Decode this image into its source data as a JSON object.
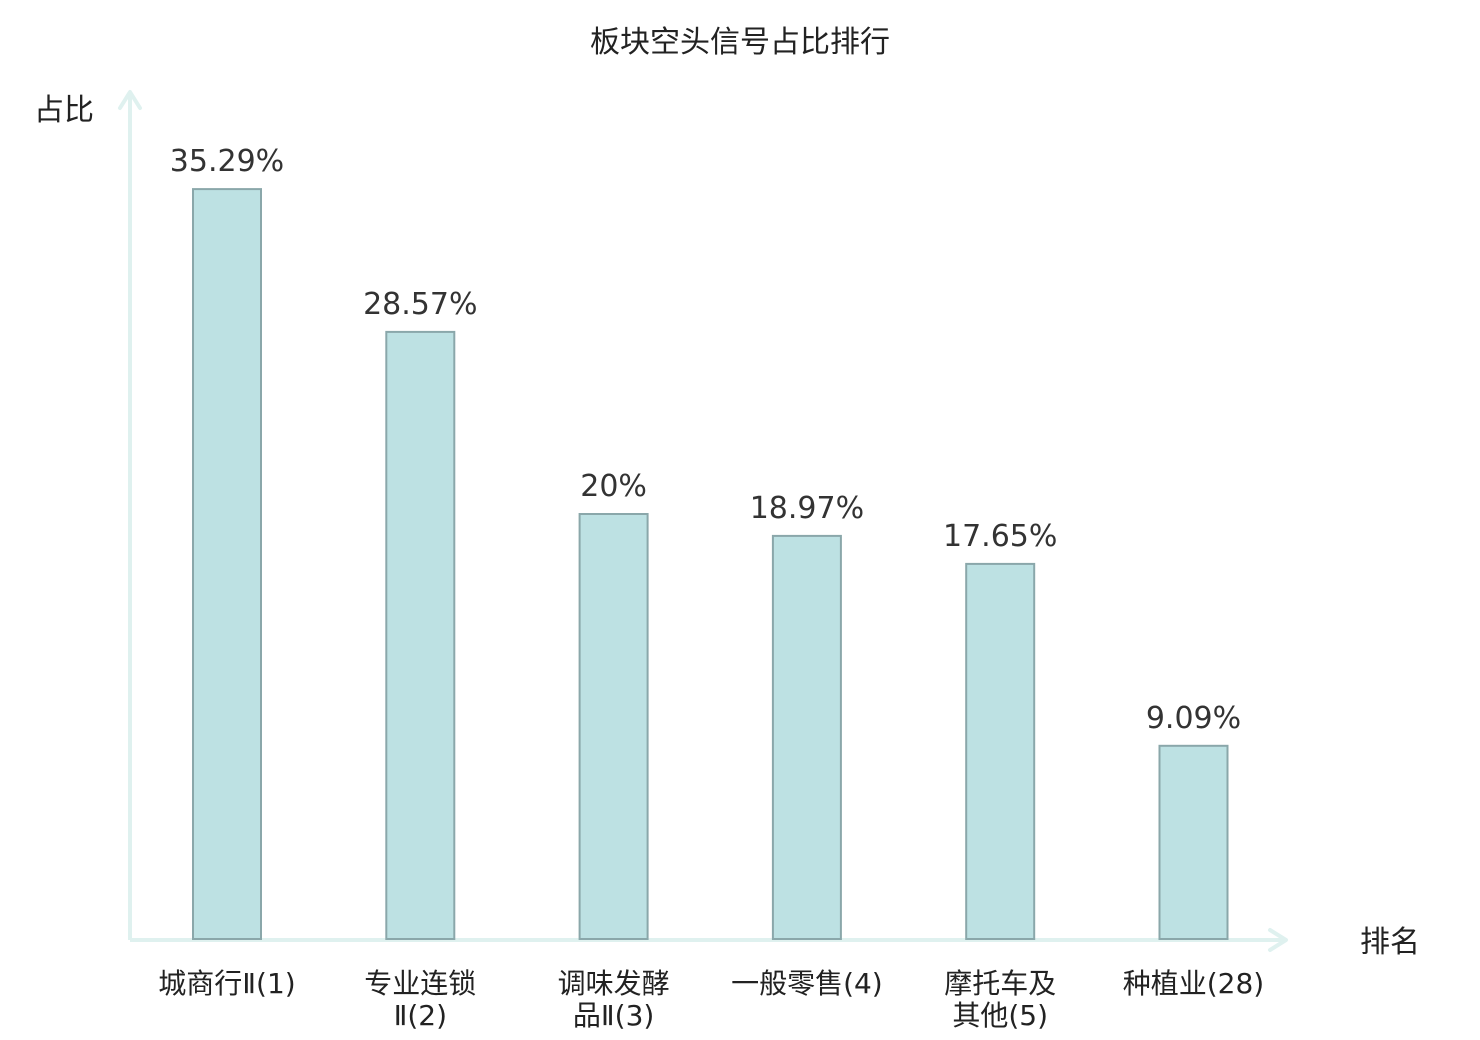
{
  "chart_data": {
    "type": "bar",
    "title": "板块空头信号占比排行",
    "ylabel": "占比",
    "xlabel": "排名",
    "ylim": [
      0,
      40
    ],
    "grid": false,
    "legend": "none",
    "categories": [
      {
        "lines": [
          "城商行Ⅱ(1)"
        ],
        "highlight": false
      },
      {
        "lines": [
          "专业连锁",
          "Ⅱ(2)"
        ],
        "highlight": false
      },
      {
        "lines": [
          "调味发酵",
          "品Ⅱ(3)"
        ],
        "highlight": false
      },
      {
        "lines": [
          "一般零售(4)"
        ],
        "highlight": false
      },
      {
        "lines": [
          "摩托车及",
          "其他(5)"
        ],
        "highlight": false
      },
      {
        "lines": [
          "种植业(28)"
        ],
        "highlight": true
      }
    ],
    "values": [
      35.29,
      28.57,
      20,
      18.97,
      17.65,
      9.09
    ],
    "value_labels": [
      "35.29%",
      "28.57%",
      "20%",
      "18.97%",
      "17.65%",
      "9.09%"
    ]
  },
  "colors": {
    "bar_fill": "#bde1e3",
    "bar_stroke": "#8aa7aa",
    "axis": "#dff1ef",
    "text": "#222222",
    "highlight": "#e8262a"
  }
}
